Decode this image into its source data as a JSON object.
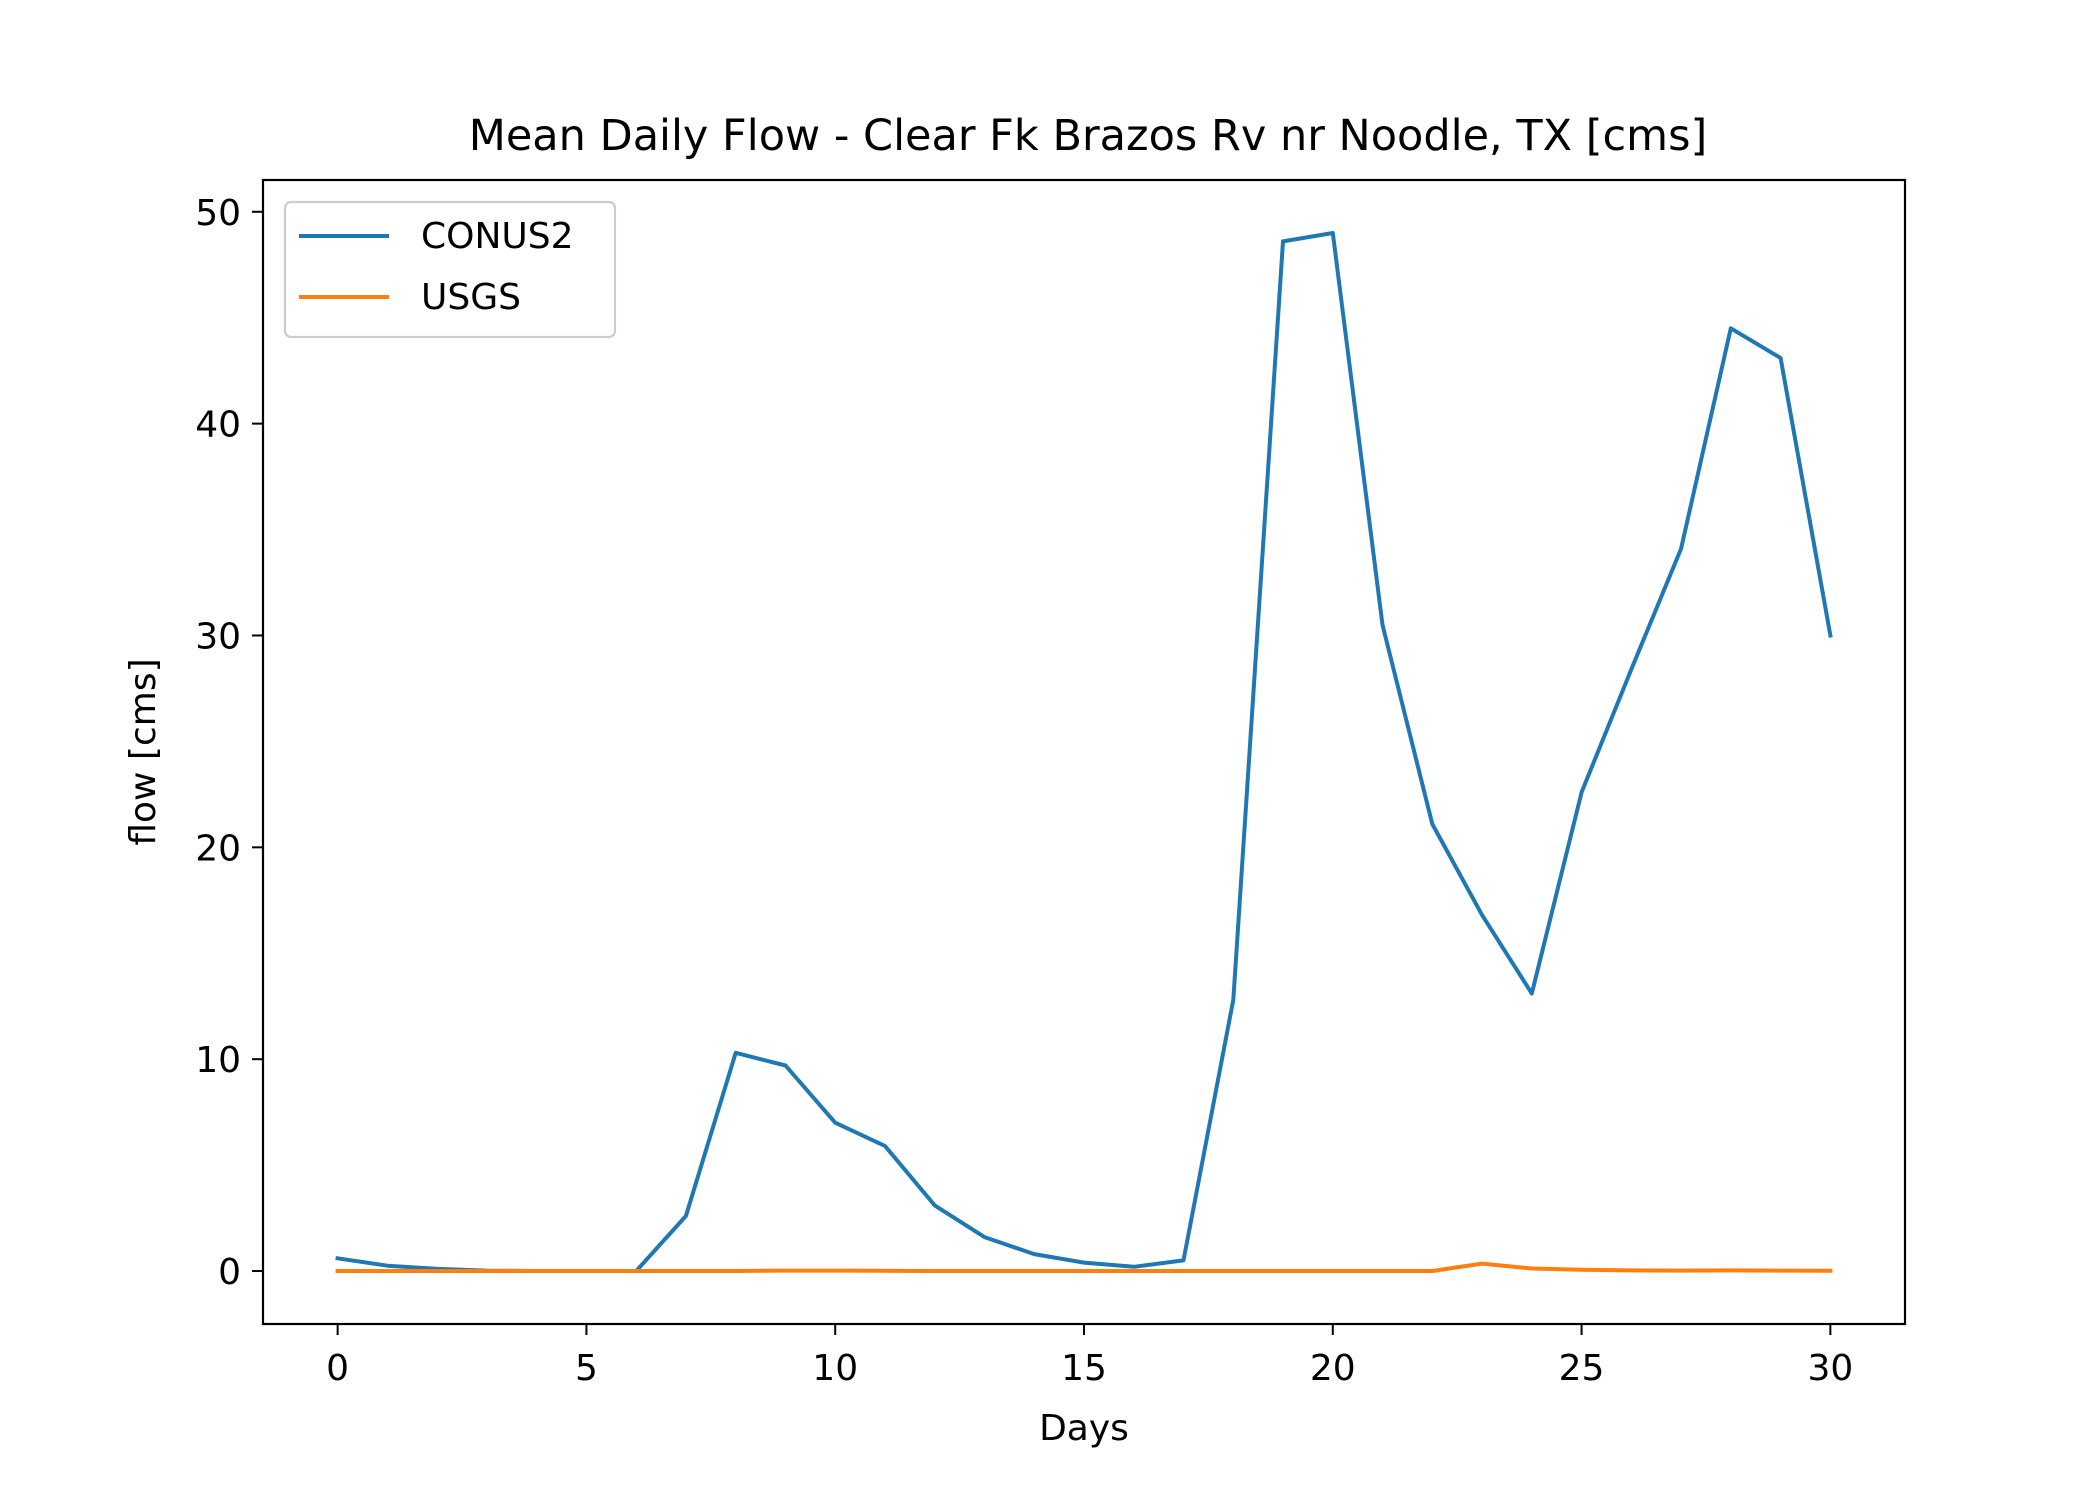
{
  "chart_data": {
    "type": "line",
    "title": "Mean Daily Flow - Clear Fk Brazos Rv nr Noodle, TX [cms]",
    "xlabel": "Days",
    "ylabel": "flow [cms]",
    "xlim": [
      -1.5,
      31.5
    ],
    "ylim": [
      -2.5,
      51.5
    ],
    "xticks": [
      0,
      5,
      10,
      15,
      20,
      25,
      30
    ],
    "yticks": [
      0,
      10,
      20,
      30,
      40,
      50
    ],
    "grid": false,
    "legend_position": "upper left",
    "x": [
      0,
      1,
      2,
      3,
      4,
      5,
      6,
      7,
      8,
      9,
      10,
      11,
      12,
      13,
      14,
      15,
      16,
      17,
      18,
      19,
      20,
      21,
      22,
      23,
      24,
      25,
      26,
      27,
      28,
      29,
      30
    ],
    "series": [
      {
        "name": "CONUS2",
        "color": "#1f77b4",
        "values": [
          0.6,
          0.25,
          0.1,
          0.02,
          0.0,
          0.0,
          0.0,
          2.6,
          10.3,
          9.7,
          7.0,
          5.9,
          3.1,
          1.6,
          0.8,
          0.4,
          0.2,
          0.5,
          12.8,
          48.6,
          49.0,
          30.5,
          21.1,
          16.8,
          13.1,
          22.6,
          28.4,
          34.1,
          44.5,
          43.1,
          30.0
        ]
      },
      {
        "name": "USGS",
        "color": "#ff7f0e",
        "values": [
          0.0,
          0.0,
          0.0,
          0.0,
          0.0,
          0.0,
          0.0,
          0.0,
          0.0,
          0.02,
          0.02,
          0.01,
          0.0,
          0.0,
          0.0,
          0.0,
          0.0,
          0.0,
          0.0,
          0.0,
          0.0,
          0.0,
          0.0,
          0.35,
          0.12,
          0.06,
          0.03,
          0.02,
          0.03,
          0.02,
          0.01
        ]
      }
    ]
  }
}
